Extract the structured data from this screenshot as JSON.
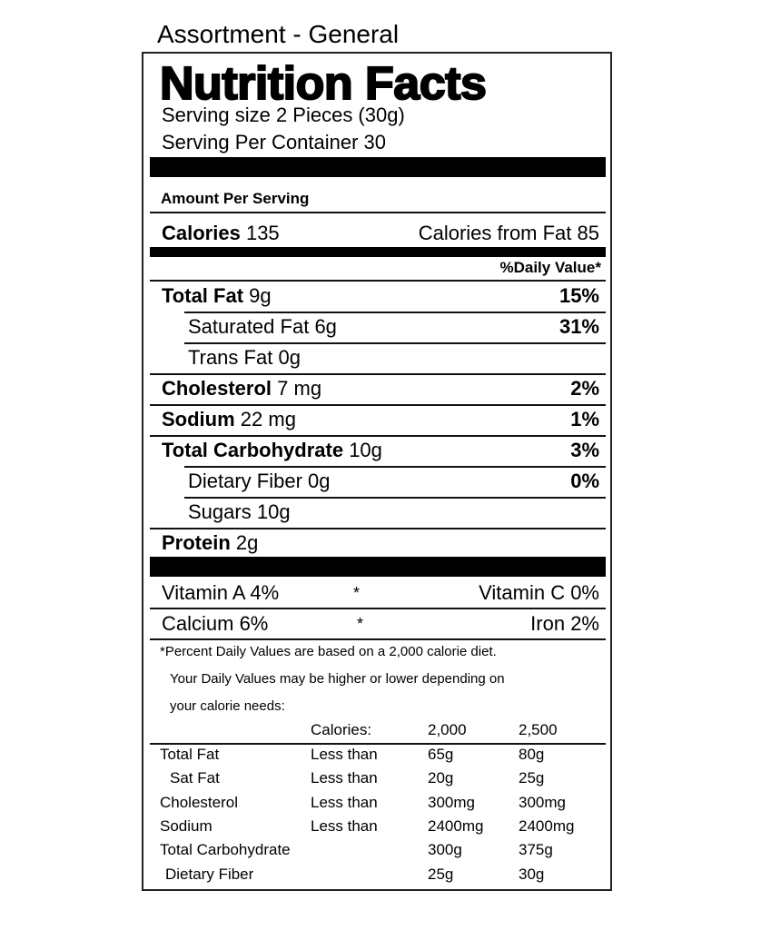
{
  "product_title": "Assortment - General",
  "label": {
    "heading": "Nutrition Facts",
    "serving_size": "Serving size 2 Pieces (30g)",
    "servings_per_container": "Serving Per Container 30",
    "amount_per_serving": "Amount Per Serving",
    "calories_label": "Calories",
    "calories_value": "135",
    "calories_from_fat": "Calories from Fat 85",
    "daily_value_header": "%Daily Value*",
    "nutrients": [
      {
        "name": "Total Fat",
        "amount": "9g",
        "dv": "15%"
      },
      {
        "name": "Saturated Fat",
        "amount": "6g",
        "dv": "31%"
      },
      {
        "name": "Trans Fat",
        "amount": "0g",
        "dv": ""
      },
      {
        "name": "Cholesterol",
        "amount": "7 mg",
        "dv": "2%"
      },
      {
        "name": "Sodium",
        "amount": "22 mg",
        "dv": "1%"
      },
      {
        "name": "Total Carbohydrate",
        "amount": "10g",
        "dv": "3%"
      },
      {
        "name": "Dietary Fiber",
        "amount": "0g",
        "dv": "0%"
      },
      {
        "name": "Sugars",
        "amount": "10g",
        "dv": ""
      },
      {
        "name": "Protein",
        "amount": "2g",
        "dv": ""
      }
    ],
    "vitamins": [
      {
        "left": "Vitamin A 4%",
        "sep": "*",
        "right": "Vitamin C 0%"
      },
      {
        "left": "Calcium 6%",
        "sep": "*",
        "right": "Iron 2%"
      }
    ],
    "footnote": [
      "*Percent Daily Values are based on a 2,000 calorie diet.",
      "Your Daily Values may be higher or lower depending on",
      "your calorie needs:"
    ],
    "dv_table": {
      "header": [
        "",
        "Calories:",
        "2,000",
        "2,500"
      ],
      "rows": [
        [
          "Total Fat",
          "Less than",
          "65g",
          "80g"
        ],
        [
          "Sat Fat",
          "Less than",
          "20g",
          "25g"
        ],
        [
          "Cholesterol",
          "Less than",
          "300mg",
          "300mg"
        ],
        [
          "Sodium",
          "Less than",
          "2400mg",
          "2400mg"
        ],
        [
          "Total Carbohydrate",
          "",
          "300g",
          "375g"
        ],
        [
          "Dietary Fiber",
          "",
          "25g",
          "30g"
        ]
      ]
    }
  }
}
